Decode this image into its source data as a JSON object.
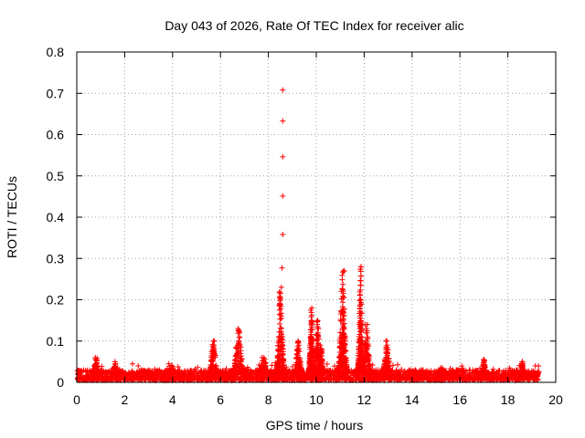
{
  "chart_data": {
    "type": "scatter",
    "title": "Day 043 of 2026, Rate Of TEC Index for receiver alic",
    "xlabel": "GPS time / hours",
    "ylabel": "ROTI / TECUs",
    "xlim": [
      0,
      20
    ],
    "ylim": [
      0,
      0.8
    ],
    "xticks": [
      0,
      2,
      4,
      6,
      8,
      10,
      12,
      14,
      16,
      18,
      20
    ],
    "yticks": [
      0,
      0.1,
      0.2,
      0.3,
      0.4,
      0.5,
      0.6,
      0.7,
      0.8
    ],
    "xtick_labels": [
      "0",
      "2",
      "4",
      "6",
      "8",
      "10",
      "12",
      "14",
      "16",
      "18",
      "20"
    ],
    "ytick_labels": [
      "0",
      "0.1",
      "0.2",
      "0.3",
      "0.4",
      "0.5",
      "0.6",
      "0.7",
      "0.8"
    ],
    "grid": true,
    "marker": "+",
    "series": [
      {
        "name": "ROTI",
        "color": "#ff0000",
        "baseline": {
          "x_range": [
            0,
            19.3
          ],
          "y_min": 0.005,
          "y_max": 0.03
        },
        "bursts": [
          {
            "x": 0.8,
            "width": 0.15,
            "peak": 0.06
          },
          {
            "x": 1.6,
            "width": 0.1,
            "peak": 0.05
          },
          {
            "x": 3.9,
            "width": 0.3,
            "peak": 0.045
          },
          {
            "x": 5.7,
            "width": 0.2,
            "peak": 0.1
          },
          {
            "x": 6.75,
            "width": 0.25,
            "peak": 0.13
          },
          {
            "x": 7.8,
            "width": 0.25,
            "peak": 0.06
          },
          {
            "x": 8.5,
            "width": 0.18,
            "peak": 0.23
          },
          {
            "x": 9.25,
            "width": 0.18,
            "peak": 0.1
          },
          {
            "x": 9.8,
            "width": 0.12,
            "peak": 0.18
          },
          {
            "x": 10.05,
            "width": 0.18,
            "peak": 0.15
          },
          {
            "x": 10.2,
            "width": 0.12,
            "peak": 0.09
          },
          {
            "x": 11.1,
            "width": 0.2,
            "peak": 0.27
          },
          {
            "x": 11.85,
            "width": 0.12,
            "peak": 0.28
          },
          {
            "x": 12.1,
            "width": 0.2,
            "peak": 0.14
          },
          {
            "x": 12.95,
            "width": 0.18,
            "peak": 0.1
          },
          {
            "x": 15.2,
            "width": 0.3,
            "peak": 0.035
          },
          {
            "x": 17.0,
            "width": 0.12,
            "peak": 0.055
          },
          {
            "x": 18.6,
            "width": 0.1,
            "peak": 0.05
          }
        ],
        "points": [
          {
            "x": 8.6,
            "y": 0.708
          },
          {
            "x": 8.6,
            "y": 0.633
          },
          {
            "x": 8.6,
            "y": 0.546
          },
          {
            "x": 8.6,
            "y": 0.451
          },
          {
            "x": 8.6,
            "y": 0.358
          },
          {
            "x": 8.57,
            "y": 0.277
          },
          {
            "x": 11.87,
            "y": 0.28
          },
          {
            "x": 11.17,
            "y": 0.27
          },
          {
            "x": 9.77,
            "y": 0.175
          },
          {
            "x": 10.05,
            "y": 0.148
          },
          {
            "x": 12.05,
            "y": 0.14
          },
          {
            "x": 6.75,
            "y": 0.125
          },
          {
            "x": 5.75,
            "y": 0.1
          },
          {
            "x": 12.95,
            "y": 0.1
          },
          {
            "x": 9.25,
            "y": 0.095
          },
          {
            "x": 0.85,
            "y": 0.058
          },
          {
            "x": 17.0,
            "y": 0.055
          },
          {
            "x": 18.6,
            "y": 0.05
          },
          {
            "x": 19.15,
            "y": 0.04
          }
        ]
      }
    ]
  }
}
